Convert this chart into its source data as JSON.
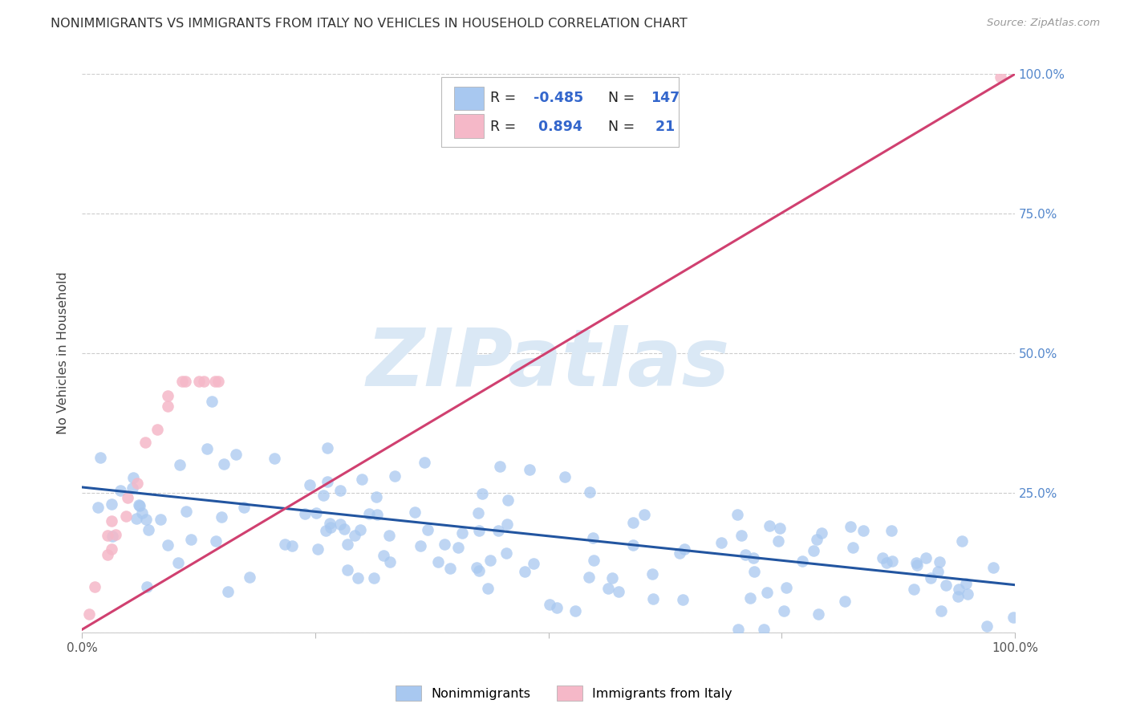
{
  "title": "NONIMMIGRANTS VS IMMIGRANTS FROM ITALY NO VEHICLES IN HOUSEHOLD CORRELATION CHART",
  "source": "Source: ZipAtlas.com",
  "ylabel": "No Vehicles in Household",
  "legend_label1": "Nonimmigrants",
  "legend_label2": "Immigrants from Italy",
  "blue_color": "#a8c8f0",
  "blue_color_edge": "#a8c8f0",
  "pink_color": "#f5b8c8",
  "pink_color_edge": "#f5b8c8",
  "blue_line_color": "#2255a0",
  "pink_line_color": "#d04070",
  "background_color": "#ffffff",
  "watermark": "ZIPatlas",
  "watermark_color": "#dae8f5",
  "grid_color": "#cccccc",
  "tick_label_color_right": "#5588cc",
  "title_color": "#333333",
  "source_color": "#999999",
  "legend_text_color_r": "#222222",
  "legend_text_color_n": "#5588cc",
  "legend_val_color": "#3366cc",
  "blue_trend_x": [
    0.0,
    1.0
  ],
  "blue_trend_y": [
    0.26,
    0.085
  ],
  "pink_trend_x": [
    0.0,
    1.0
  ],
  "pink_trend_y": [
    0.005,
    1.0
  ],
  "xlim": [
    0.0,
    1.0
  ],
  "ylim": [
    0.0,
    1.0
  ],
  "seed_blue": 77,
  "seed_pink": 42,
  "N_blue": 147,
  "N_pink": 21
}
